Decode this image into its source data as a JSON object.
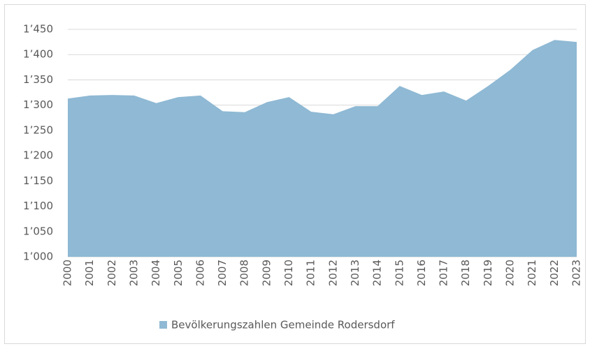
{
  "chart_data": {
    "type": "area",
    "categories": [
      "2000",
      "2001",
      "2002",
      "2003",
      "2004",
      "2005",
      "2006",
      "2007",
      "2008",
      "2009",
      "2010",
      "2011",
      "2012",
      "2013",
      "2014",
      "2015",
      "2016",
      "2017",
      "2018",
      "2019",
      "2020",
      "2021",
      "2022",
      "2023"
    ],
    "series": [
      {
        "name": "Bevölkerungszahlen Gemeinde Rodersdorf",
        "color": "#8fb9d4",
        "values": [
          1313,
          1319,
          1320,
          1319,
          1304,
          1316,
          1319,
          1288,
          1286,
          1306,
          1316,
          1287,
          1282,
          1298,
          1298,
          1338,
          1320,
          1327,
          1309,
          1338,
          1370,
          1409,
          1429,
          1425
        ]
      }
    ],
    "ylim": [
      1000,
      1450
    ],
    "yticks": [
      {
        "value": 1000,
        "label": "1’000"
      },
      {
        "value": 1050,
        "label": "1’050"
      },
      {
        "value": 1100,
        "label": "1’100"
      },
      {
        "value": 1150,
        "label": "1’150"
      },
      {
        "value": 1200,
        "label": "1’200"
      },
      {
        "value": 1250,
        "label": "1’250"
      },
      {
        "value": 1300,
        "label": "1’300"
      },
      {
        "value": 1350,
        "label": "1’350"
      },
      {
        "value": 1400,
        "label": "1’400"
      },
      {
        "value": 1450,
        "label": "1’450"
      }
    ],
    "grid": true,
    "legend": "bottom"
  }
}
